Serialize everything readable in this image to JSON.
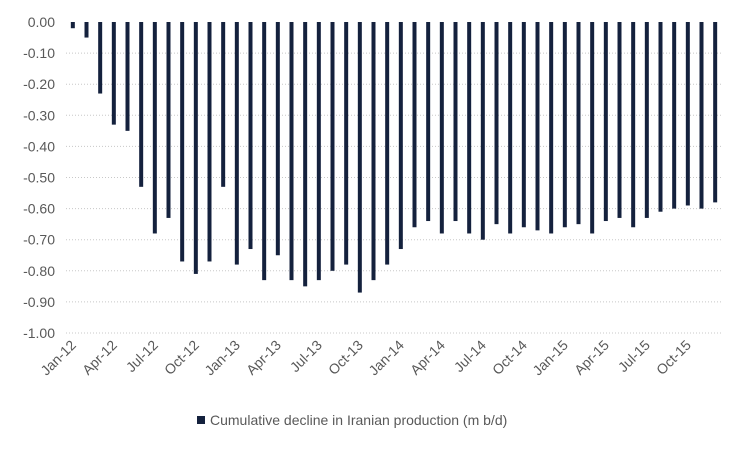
{
  "chart_data": {
    "type": "bar",
    "title": "",
    "xlabel": "",
    "ylabel": "",
    "ylim": [
      -1.0,
      0.0
    ],
    "yticks": [
      "0.00",
      "-0.10",
      "-0.20",
      "-0.30",
      "-0.40",
      "-0.50",
      "-0.60",
      "-0.70",
      "-0.80",
      "-0.90",
      "-1.00"
    ],
    "grid": "horizontal dotted",
    "legend": "bottom",
    "bar_color": "#14213D",
    "categories": [
      "Jan-12",
      "Feb-12",
      "Mar-12",
      "Apr-12",
      "May-12",
      "Jun-12",
      "Jul-12",
      "Aug-12",
      "Sep-12",
      "Oct-12",
      "Nov-12",
      "Dec-12",
      "Jan-13",
      "Feb-13",
      "Mar-13",
      "Apr-13",
      "May-13",
      "Jun-13",
      "Jul-13",
      "Aug-13",
      "Sep-13",
      "Oct-13",
      "Nov-13",
      "Dec-13",
      "Jan-14",
      "Feb-14",
      "Mar-14",
      "Apr-14",
      "May-14",
      "Jun-14",
      "Jul-14",
      "Aug-14",
      "Sep-14",
      "Oct-14",
      "Nov-14",
      "Dec-14",
      "Jan-15",
      "Feb-15",
      "Mar-15",
      "Apr-15",
      "May-15",
      "Jun-15",
      "Jul-15",
      "Aug-15",
      "Sep-15",
      "Oct-15",
      "Nov-15",
      "Dec-15"
    ],
    "tick_labels": [
      "Jan-12",
      "Apr-12",
      "Jul-12",
      "Oct-12",
      "Jan-13",
      "Apr-13",
      "Jul-13",
      "Oct-13",
      "Jan-14",
      "Apr-14",
      "Jul-14",
      "Oct-14",
      "Jan-15",
      "Apr-15",
      "Jul-15",
      "Oct-15"
    ],
    "series": [
      {
        "name": "Cumulative decline in Iranian production (m b/d)",
        "values": [
          -0.02,
          -0.05,
          -0.23,
          -0.33,
          -0.35,
          -0.53,
          -0.68,
          -0.63,
          -0.77,
          -0.81,
          -0.77,
          -0.53,
          -0.78,
          -0.73,
          -0.83,
          -0.75,
          -0.83,
          -0.85,
          -0.83,
          -0.8,
          -0.78,
          -0.87,
          -0.83,
          -0.78,
          -0.73,
          -0.66,
          -0.64,
          -0.68,
          -0.64,
          -0.68,
          -0.7,
          -0.65,
          -0.68,
          -0.66,
          -0.67,
          -0.68,
          -0.66,
          -0.65,
          -0.68,
          -0.64,
          -0.63,
          -0.66,
          -0.63,
          -0.61,
          -0.6,
          -0.59,
          -0.6,
          -0.58
        ]
      }
    ]
  }
}
